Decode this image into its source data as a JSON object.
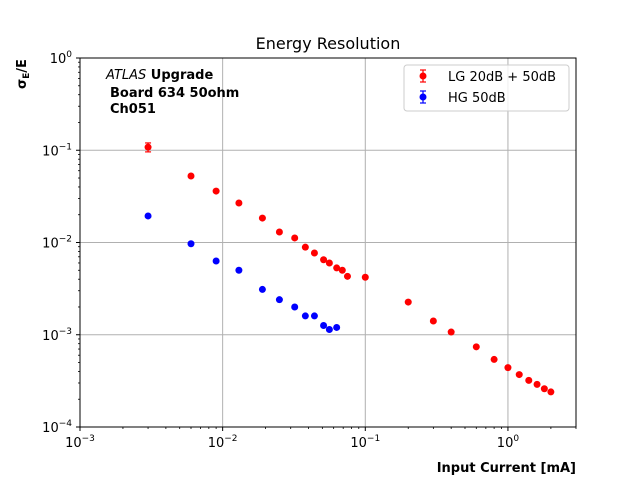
{
  "chart_data": {
    "type": "scatter",
    "title": "Energy Resolution",
    "xlabel": "Input Current [mA]",
    "ylabel_main": "σ",
    "ylabel_sub": "E",
    "ylabel_tail": "/E",
    "xscale": "log",
    "yscale": "log",
    "xlim": [
      0.001,
      3
    ],
    "ylim": [
      0.0001,
      1
    ],
    "grid": true,
    "legend_position": "top-right",
    "x_ticks": [
      {
        "value": 0.001,
        "base": "10",
        "exp": "−3"
      },
      {
        "value": 0.01,
        "base": "10",
        "exp": "−2"
      },
      {
        "value": 0.1,
        "base": "10",
        "exp": "−1"
      },
      {
        "value": 1,
        "base": "10",
        "exp": "0"
      }
    ],
    "y_ticks": [
      {
        "value": 1,
        "base": "10",
        "exp": "0"
      },
      {
        "value": 0.1,
        "base": "10",
        "exp": "−1"
      },
      {
        "value": 0.01,
        "base": "10",
        "exp": "−2"
      },
      {
        "value": 0.001,
        "base": "10",
        "exp": "−3"
      },
      {
        "value": 0.0001,
        "base": "10",
        "exp": "−4"
      }
    ],
    "annotation": {
      "italic": "ATLAS",
      "bold_line1": " Upgrade",
      "line2": "Board 634 50ohm",
      "line3": "Ch051"
    },
    "series": [
      {
        "name": "LG 20dB + 50dB",
        "color": "#ff0000",
        "x": [
          0.003,
          0.006,
          0.009,
          0.013,
          0.019,
          0.025,
          0.032,
          0.038,
          0.044,
          0.051,
          0.056,
          0.063,
          0.069,
          0.075,
          0.1,
          0.2,
          0.3,
          0.4,
          0.6,
          0.8,
          1.0,
          1.2,
          1.4,
          1.6,
          1.8,
          2.0
        ],
        "y": [
          0.108,
          0.0526,
          0.0361,
          0.0268,
          0.0184,
          0.013,
          0.0112,
          0.0089,
          0.0077,
          0.0065,
          0.006,
          0.0053,
          0.005,
          0.0043,
          0.0042,
          0.00226,
          0.00141,
          0.00107,
          0.00074,
          0.00054,
          0.00044,
          0.00037,
          0.00032,
          0.00029,
          0.00026,
          0.00024
        ],
        "yerr": [
          0.012,
          0.003,
          0.001,
          0.0005,
          0.0003,
          0.0002,
          0.0002,
          0.0001,
          0.0001,
          0.0001,
          0.0001,
          0.0001,
          0.0001,
          0.0001,
          0.0001,
          3e-05,
          2e-05,
          1e-05,
          1e-05,
          1e-05,
          1e-05,
          1e-05,
          1e-05,
          1e-05,
          1e-05,
          1e-05
        ]
      },
      {
        "name": "HG 50dB",
        "color": "#0000ff",
        "x": [
          0.003,
          0.006,
          0.009,
          0.013,
          0.019,
          0.025,
          0.032,
          0.038,
          0.044,
          0.051,
          0.056,
          0.063
        ],
        "y": [
          0.0194,
          0.0097,
          0.0063,
          0.005,
          0.0031,
          0.0024,
          0.002,
          0.0016,
          0.0016,
          0.00126,
          0.00114,
          0.0012
        ],
        "yerr": [
          0.0004,
          0.0002,
          0.0001,
          0.0001,
          5e-05,
          4e-05,
          3e-05,
          3e-05,
          3e-05,
          2e-05,
          2e-05,
          2e-05
        ]
      }
    ]
  }
}
